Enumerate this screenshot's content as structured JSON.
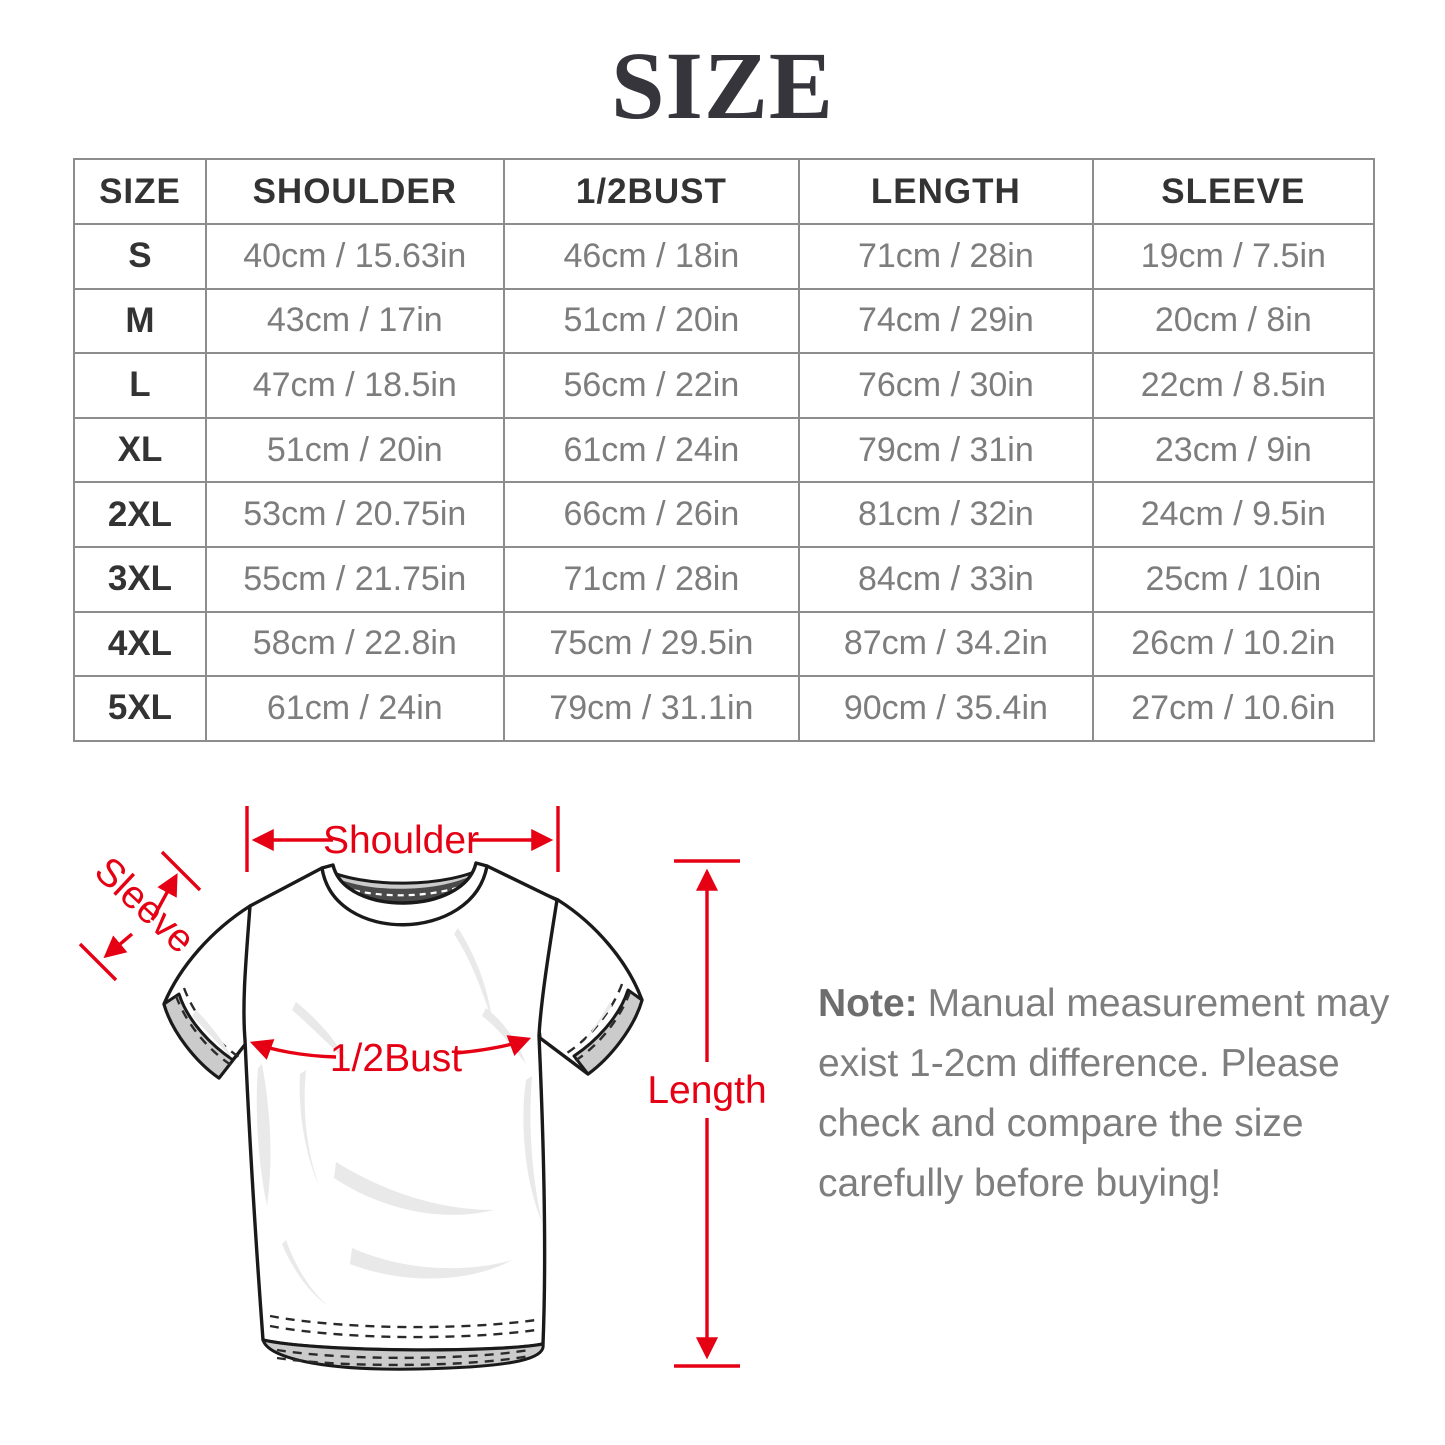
{
  "title": "SIZE",
  "table": {
    "headers": [
      "SIZE",
      "SHOULDER",
      "1/2BUST",
      "LENGTH",
      "SLEEVE"
    ],
    "rows": [
      {
        "size": "S",
        "shoulder": "40cm / 15.63in",
        "bust": "46cm / 18in",
        "length": "71cm / 28in",
        "sleeve": "19cm / 7.5in"
      },
      {
        "size": "M",
        "shoulder": "43cm / 17in",
        "bust": "51cm / 20in",
        "length": "74cm / 29in",
        "sleeve": "20cm / 8in"
      },
      {
        "size": "L",
        "shoulder": "47cm / 18.5in",
        "bust": "56cm / 22in",
        "length": "76cm / 30in",
        "sleeve": "22cm / 8.5in"
      },
      {
        "size": "XL",
        "shoulder": "51cm / 20in",
        "bust": "61cm / 24in",
        "length": "79cm / 31in",
        "sleeve": "23cm / 9in"
      },
      {
        "size": "2XL",
        "shoulder": "53cm / 20.75in",
        "bust": "66cm / 26in",
        "length": "81cm / 32in",
        "sleeve": "24cm / 9.5in"
      },
      {
        "size": "3XL",
        "shoulder": "55cm / 21.75in",
        "bust": "71cm / 28in",
        "length": "84cm / 33in",
        "sleeve": "25cm / 10in"
      },
      {
        "size": "4XL",
        "shoulder": "58cm / 22.8in",
        "bust": "75cm / 29.5in",
        "length": "87cm / 34.2in",
        "sleeve": "26cm / 10.2in"
      },
      {
        "size": "5XL",
        "shoulder": "61cm / 24in",
        "bust": "79cm / 31.1in",
        "length": "90cm / 35.4in",
        "sleeve": "27cm / 10.6in"
      }
    ]
  },
  "diagram": {
    "labels": {
      "shoulder": "Shoulder",
      "sleeve": "Sleeve",
      "half_bust": "1/2Bust",
      "length": "Length"
    }
  },
  "note": {
    "prefix": "Note:",
    "lines": [
      "Manual measurement may",
      "exist 1-2cm difference. Please",
      "check and compare the size",
      "carefully before buying!"
    ]
  },
  "colors": {
    "accent_red": "#e60014",
    "title_text": "#35353b",
    "table_border": "#8d8d8d",
    "header_text": "#333333",
    "cell_text": "#7d7d7d",
    "note_text": "#7e7e7e",
    "note_prefix_text": "#6d6d6d",
    "shirt_outline": "#1a1a1a",
    "shirt_inner_gray": "#cbcbcb",
    "wrinkle_gray": "#e9e9e9"
  }
}
